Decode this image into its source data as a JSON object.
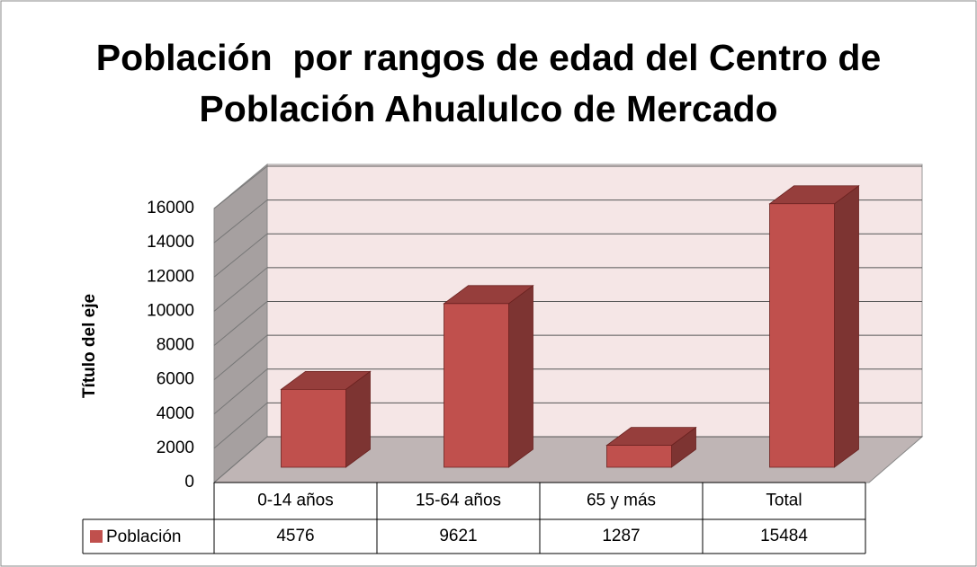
{
  "chart_data": {
    "type": "bar3d",
    "title": "Población  por rangos de edad del Centro de Población Ahualulco de Mercado",
    "y_axis_label": "Título del eje",
    "categories": [
      "0-14 años",
      "15-64 años",
      "65 y más",
      "Total"
    ],
    "series": [
      {
        "name": "Población",
        "color": "#c0504d",
        "values": [
          4576,
          9621,
          1287,
          15484
        ]
      }
    ],
    "ylim": [
      0,
      16000
    ],
    "yticks": [
      0,
      2000,
      4000,
      6000,
      8000,
      10000,
      12000,
      14000,
      16000
    ],
    "grid": true
  }
}
